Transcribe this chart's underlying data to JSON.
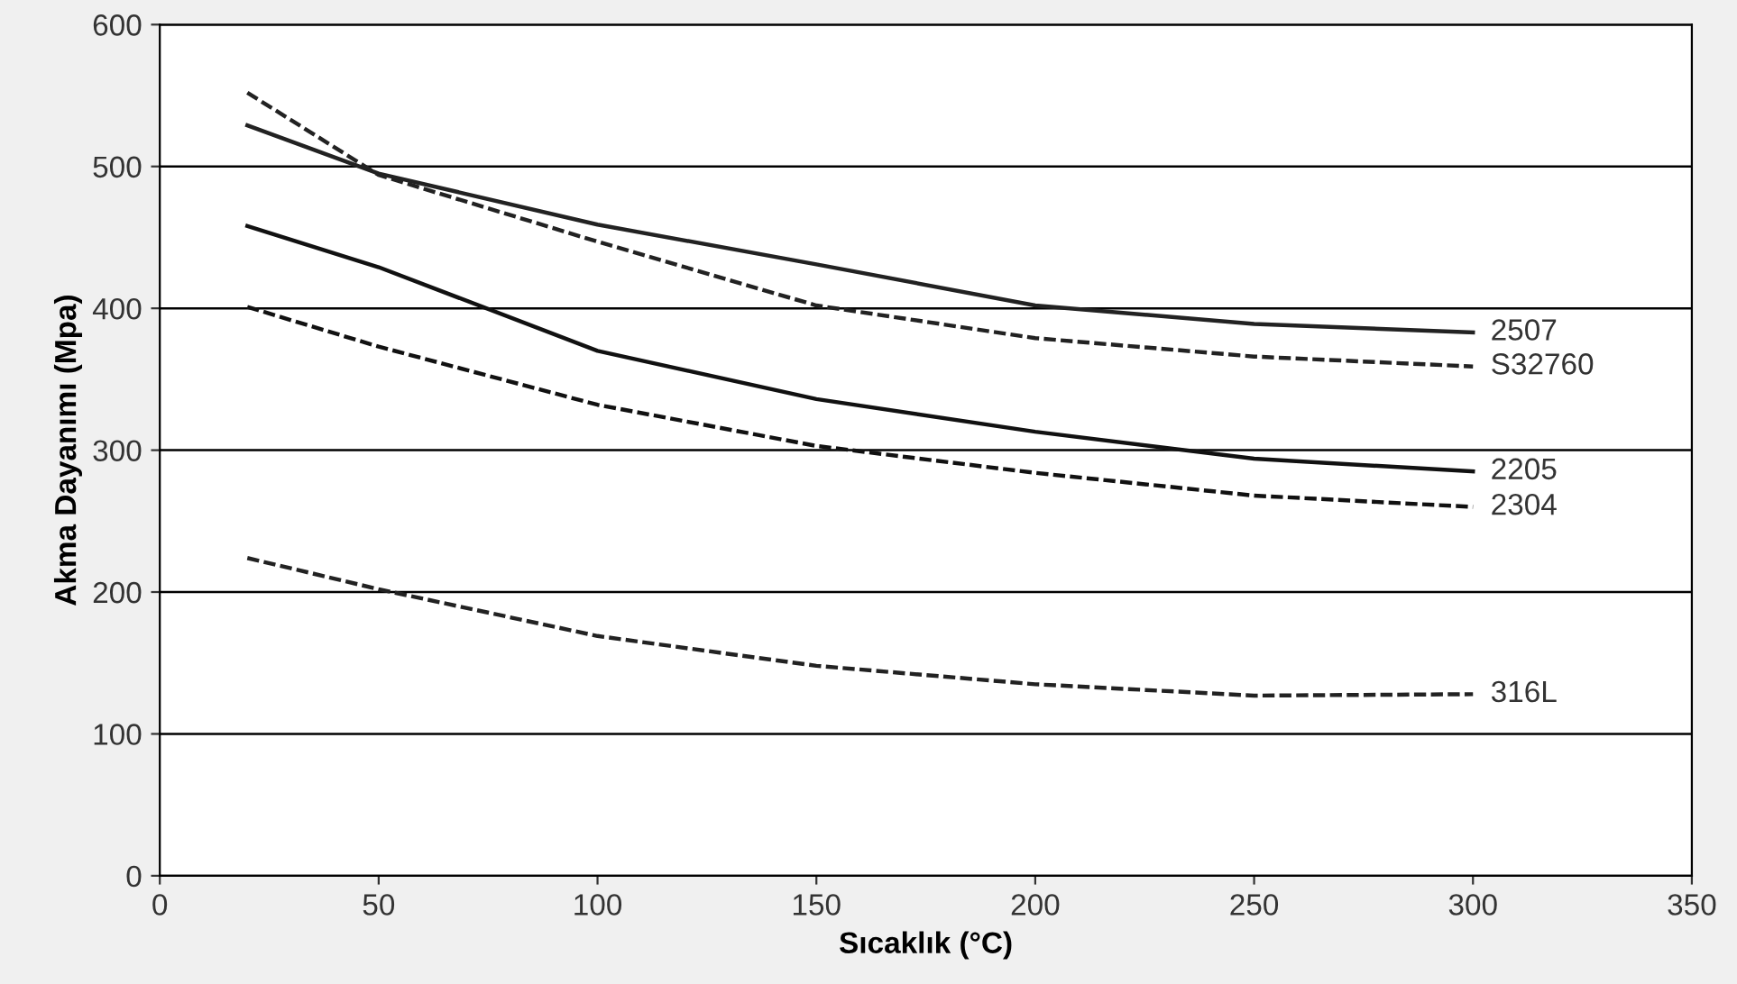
{
  "chart_data": {
    "type": "line",
    "xlabel": "Sıcaklık (°C)",
    "ylabel": "Akma Dayanımı (Mpa)",
    "x": [
      20,
      50,
      100,
      150,
      200,
      250,
      300
    ],
    "series": [
      {
        "name": "2507",
        "color": "#222222",
        "line_style": "solid",
        "values": [
          529,
          495,
          459,
          431,
          402,
          389,
          383
        ]
      },
      {
        "name": "S32760",
        "color": "#222222",
        "line_style": "dashed",
        "values": [
          552,
          494,
          447,
          402,
          379,
          366,
          359
        ]
      },
      {
        "name": "2205",
        "color": "#111111",
        "line_style": "solid",
        "values": [
          458,
          429,
          370,
          336,
          313,
          294,
          285
        ]
      },
      {
        "name": "2304",
        "color": "#111111",
        "line_style": "dashed",
        "values": [
          401,
          373,
          332,
          303,
          284,
          268,
          260
        ]
      },
      {
        "name": "316L",
        "color": "#222222",
        "line_style": "dashed",
        "values": [
          224,
          202,
          169,
          148,
          135,
          127,
          128
        ]
      }
    ],
    "xlim": [
      0,
      350
    ],
    "xticks": [
      0,
      50,
      100,
      150,
      200,
      250,
      300,
      350
    ],
    "ylim": [
      0,
      600
    ],
    "yticks": [
      0,
      100,
      200,
      300,
      400,
      500,
      600
    ],
    "grid": "y",
    "legend": false,
    "marker": "none"
  }
}
